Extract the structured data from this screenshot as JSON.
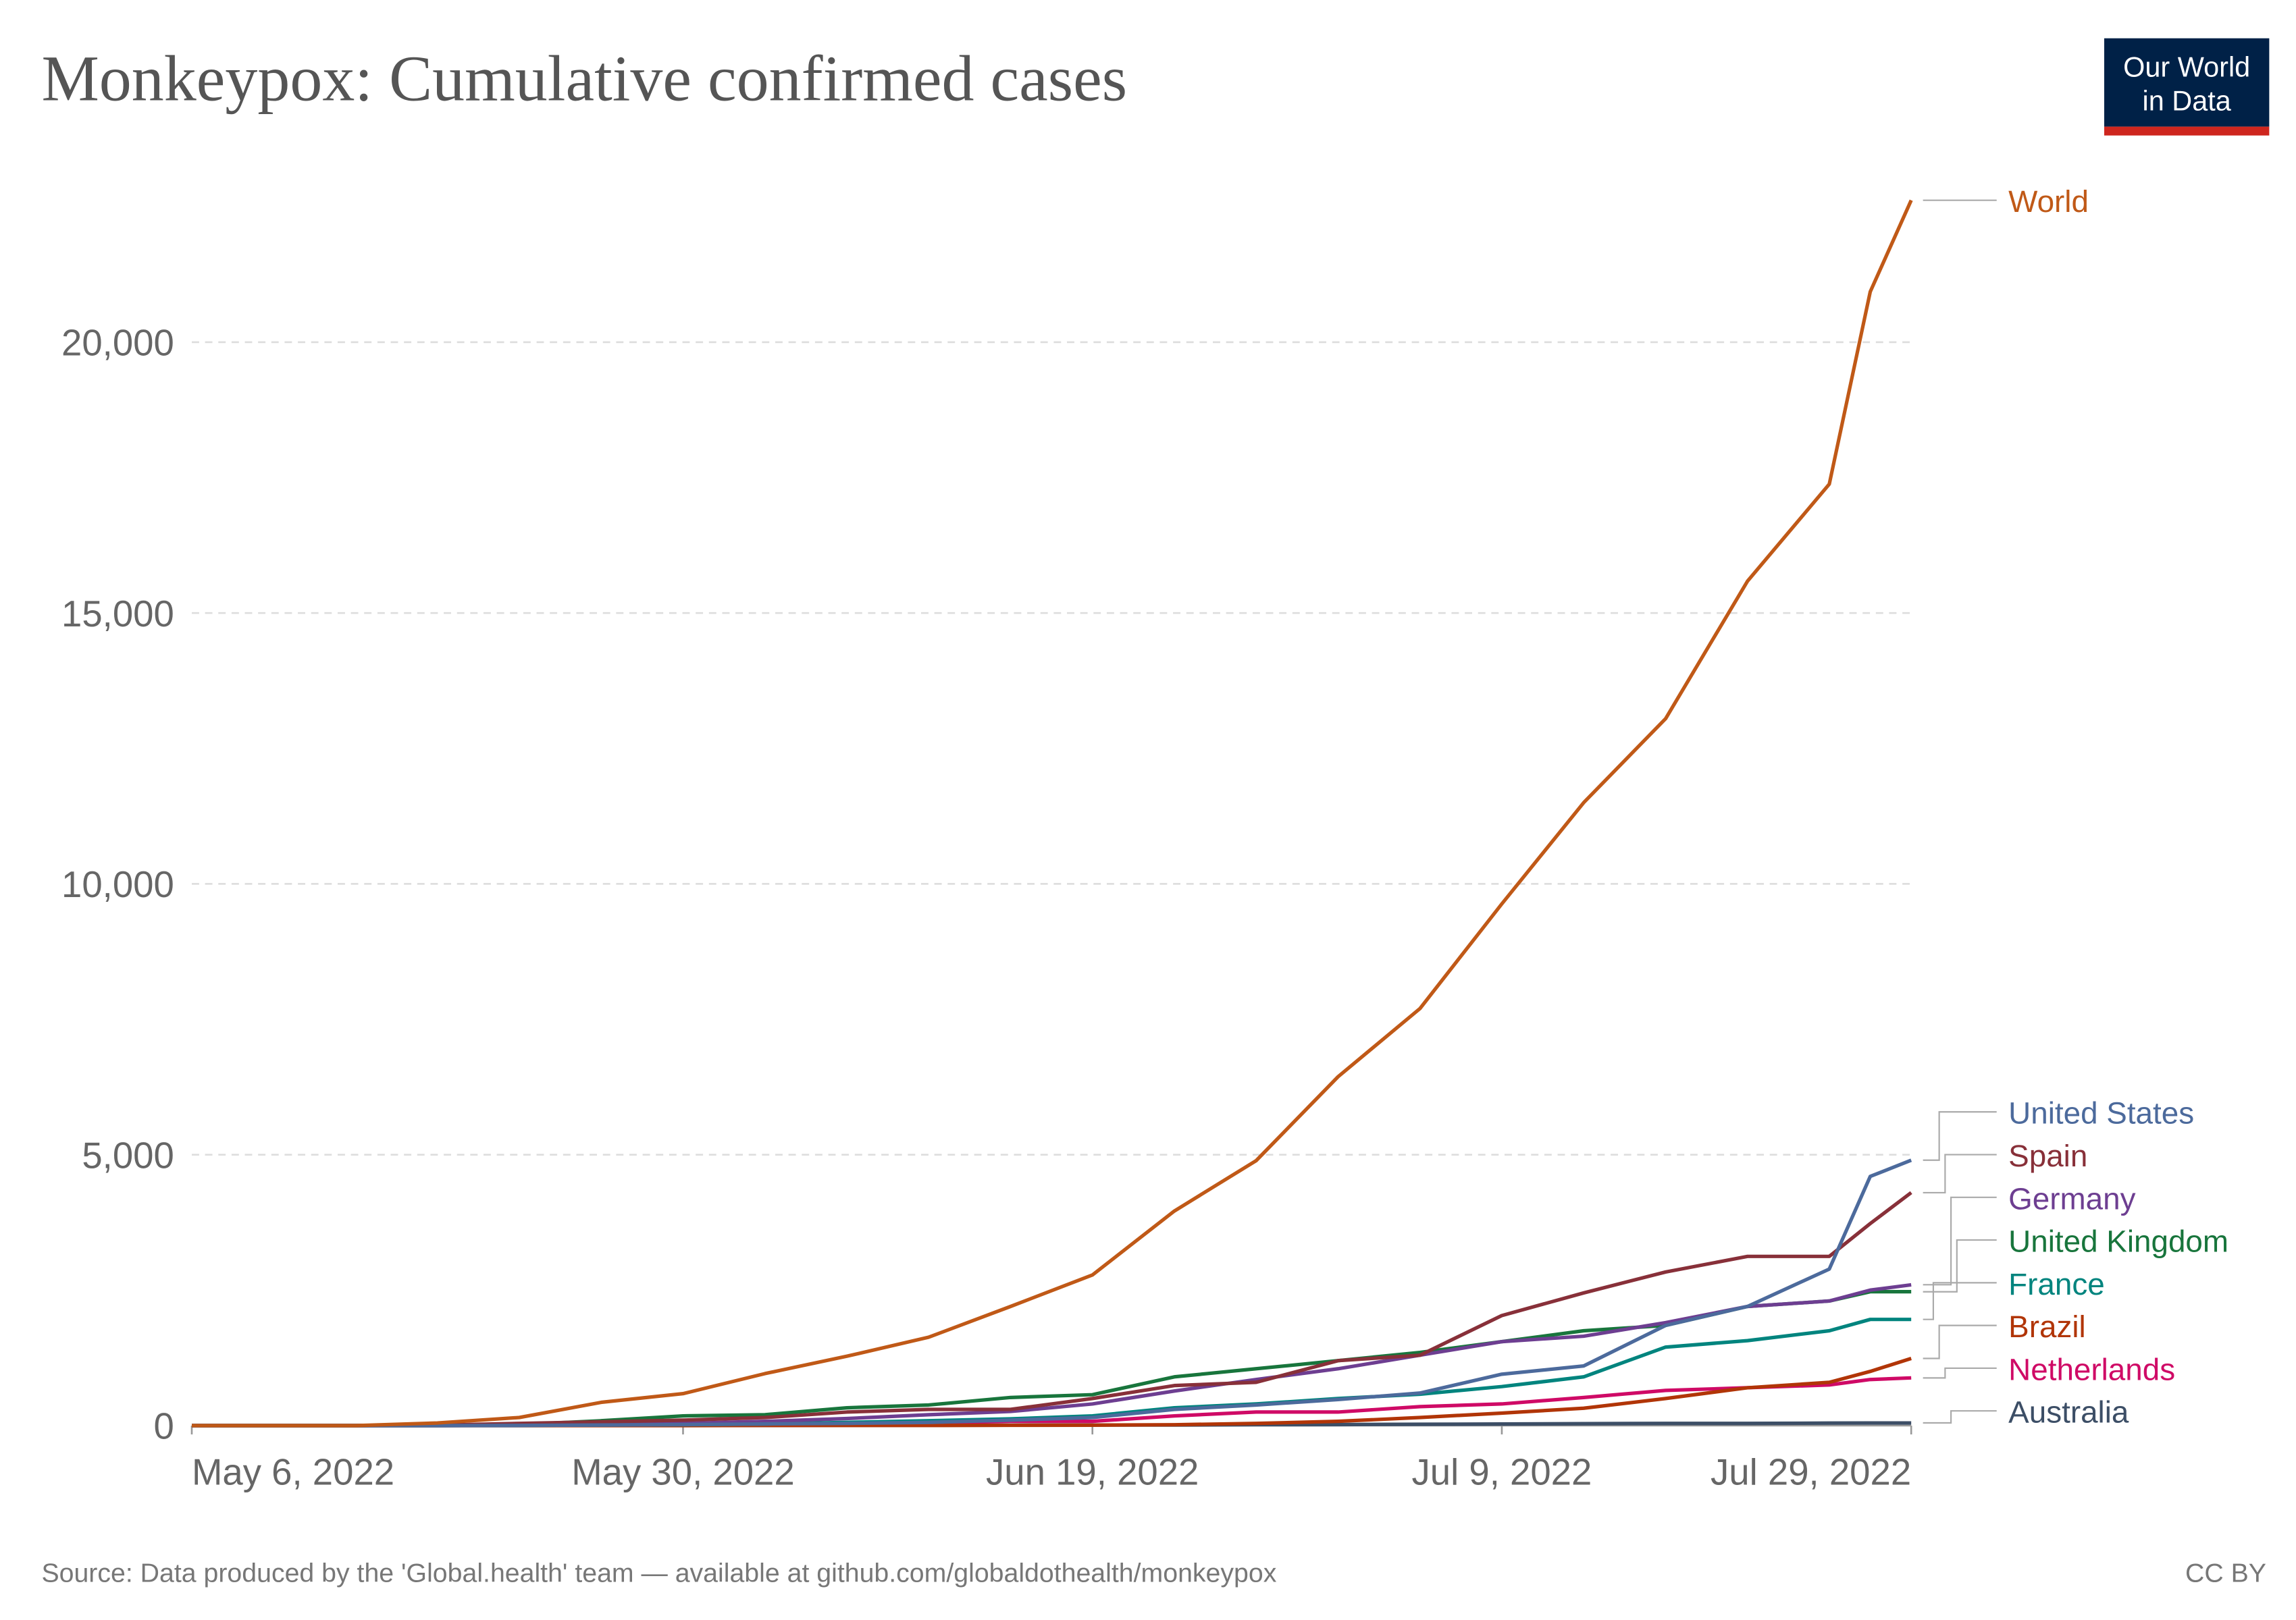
{
  "chart_data": {
    "type": "line",
    "title": "Monkeypox: Cumulative confirmed cases",
    "logo": [
      "Our World",
      "in Data"
    ],
    "source": "Source: Data produced by the 'Global.health' team — available at github.com/globaldothealth/monkeypox",
    "license": "CC BY",
    "x": [
      "2022-05-06",
      "2022-05-10",
      "2022-05-14",
      "2022-05-18",
      "2022-05-22",
      "2022-05-26",
      "2022-05-30",
      "2022-06-03",
      "2022-06-07",
      "2022-06-11",
      "2022-06-15",
      "2022-06-19",
      "2022-06-23",
      "2022-06-27",
      "2022-07-01",
      "2022-07-05",
      "2022-07-09",
      "2022-07-13",
      "2022-07-17",
      "2022-07-21",
      "2022-07-25",
      "2022-07-27",
      "2022-07-29"
    ],
    "xlim": [
      "2022-05-06",
      "2022-07-29"
    ],
    "xticks": [
      {
        "value": "2022-05-06",
        "label": "May 6, 2022"
      },
      {
        "value": "2022-05-30",
        "label": "May 30, 2022"
      },
      {
        "value": "2022-06-19",
        "label": "Jun 19, 2022"
      },
      {
        "value": "2022-07-09",
        "label": "Jul 9, 2022"
      },
      {
        "value": "2022-07-29",
        "label": "Jul 29, 2022"
      }
    ],
    "ylim": [
      0,
      23000
    ],
    "yticks": [
      0,
      {
        "value": 5000,
        "label": "5,000"
      },
      {
        "value": 10000,
        "label": "10,000"
      },
      {
        "value": 15000,
        "label": "15,000"
      },
      {
        "value": 20000,
        "label": "20,000"
      }
    ],
    "grid": true,
    "series": [
      {
        "name": "World",
        "color": "#c05917",
        "values": [
          0,
          0,
          0,
          50,
          150,
          430,
          590,
          960,
          1280,
          1630,
          2200,
          2780,
          3960,
          4890,
          6440,
          7700,
          9630,
          11500,
          13050,
          15590,
          17380,
          20930,
          22620
        ]
      },
      {
        "name": "United States",
        "color": "#4c6a9c",
        "values": [
          0,
          0,
          0,
          1,
          3,
          10,
          20,
          30,
          40,
          60,
          100,
          150,
          300,
          380,
          480,
          600,
          950,
          1100,
          1850,
          2200,
          2890,
          4600,
          4900
        ]
      },
      {
        "name": "Spain",
        "color": "#883039",
        "values": [
          0,
          0,
          0,
          7,
          40,
          70,
          100,
          150,
          250,
          300,
          300,
          500,
          740,
          800,
          1200,
          1300,
          2030,
          2450,
          2835,
          3125,
          3125,
          3730,
          4300
        ]
      },
      {
        "name": "Germany",
        "color": "#6d3e91",
        "values": [
          0,
          0,
          0,
          2,
          5,
          15,
          40,
          80,
          130,
          200,
          260,
          400,
          640,
          850,
          1050,
          1300,
          1550,
          1650,
          1900,
          2200,
          2300,
          2500,
          2600
        ]
      },
      {
        "name": "United Kingdom",
        "color": "#18753c",
        "values": [
          0,
          0,
          0,
          9,
          20,
          90,
          180,
          200,
          330,
          380,
          520,
          570,
          900,
          1050,
          1200,
          1350,
          1550,
          1750,
          1850,
          2200,
          2300,
          2470,
          2470
        ]
      },
      {
        "name": "France",
        "color": "#00847e",
        "values": [
          0,
          0,
          0,
          1,
          5,
          10,
          15,
          30,
          60,
          90,
          125,
          180,
          330,
          400,
          500,
          580,
          720,
          900,
          1450,
          1570,
          1750,
          1960,
          1960
        ]
      },
      {
        "name": "Brazil",
        "color": "#b13507",
        "values": [
          0,
          0,
          0,
          0,
          0,
          0,
          1,
          2,
          2,
          3,
          5,
          8,
          15,
          40,
          80,
          150,
          230,
          320,
          500,
          700,
          800,
          1000,
          1240
        ]
      },
      {
        "name": "Netherlands",
        "color": "#cf0a66",
        "values": [
          0,
          0,
          0,
          1,
          5,
          10,
          20,
          30,
          40,
          50,
          80,
          80,
          180,
          250,
          250,
          350,
          400,
          520,
          650,
          700,
          750,
          850,
          880
        ]
      },
      {
        "name": "Australia",
        "color": "#3c4e66",
        "values": [
          0,
          0,
          0,
          0,
          1,
          2,
          3,
          4,
          5,
          6,
          8,
          10,
          12,
          15,
          20,
          25,
          30,
          35,
          40,
          42,
          45,
          48,
          50
        ]
      }
    ]
  }
}
